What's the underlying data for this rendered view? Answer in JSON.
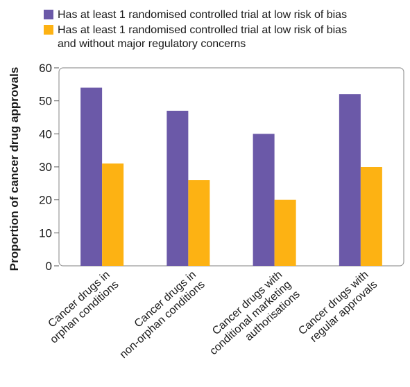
{
  "chart_data": {
    "type": "bar",
    "ylabel": "Proportion of cancer drug approvals",
    "ylim": [
      0,
      60
    ],
    "yticks": [
      0,
      10,
      20,
      30,
      40,
      50,
      60
    ],
    "grid": false,
    "legend_position": "top",
    "categories": [
      [
        "Cancer drugs in",
        "orphan conditions"
      ],
      [
        "Cancer drugs in",
        "non-orphan conditions"
      ],
      [
        "Cancer drugs with",
        "conditional marketing",
        "authorisations"
      ],
      [
        "Cancer drugs with",
        "regular approvals"
      ]
    ],
    "series": [
      {
        "name": [
          "Has at least 1 randomised controlled trial at low risk of bias"
        ],
        "color": "#6b59a8",
        "values": [
          54,
          47,
          40,
          52
        ]
      },
      {
        "name": [
          "Has at least 1 randomised controlled trial at low risk of bias",
          "and without major regulatory concerns"
        ],
        "color": "#fdb213",
        "values": [
          31,
          26,
          20,
          30
        ]
      }
    ]
  }
}
